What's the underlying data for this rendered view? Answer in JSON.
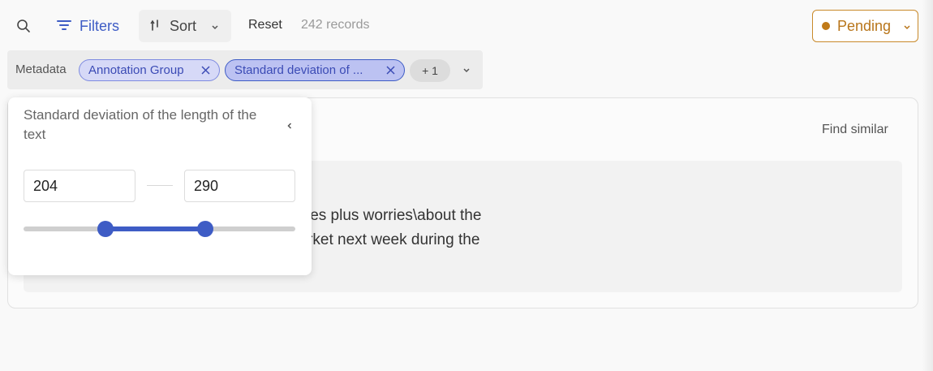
{
  "toolbar": {
    "search_icon": "search-icon",
    "filters_label": "Filters",
    "sort_label": "Sort",
    "reset_label": "Reset",
    "records_count": "242 records",
    "status_label": "Pending",
    "status_color": "#c07a18",
    "accent_color": "#3e5cc5"
  },
  "filter_bar": {
    "category_label": "Metadata",
    "chips": [
      {
        "label": "Annotation Group"
      },
      {
        "label": "Standard deviation of ..."
      }
    ],
    "more_label": "+ 1"
  },
  "record": {
    "find_similar_label": "Find similar",
    "text_lines": [
      "look (Reuters) Reuters - Soaring crude prices plus worries\\about the",
      "gs are expected to\\hang over the stock market next week during the"
    ]
  },
  "range_filter": {
    "title": "Standard deviation of the length of the text",
    "min_value": "204",
    "max_value": "290",
    "slider_low_fraction": 0.3,
    "slider_high_fraction": 0.67
  }
}
